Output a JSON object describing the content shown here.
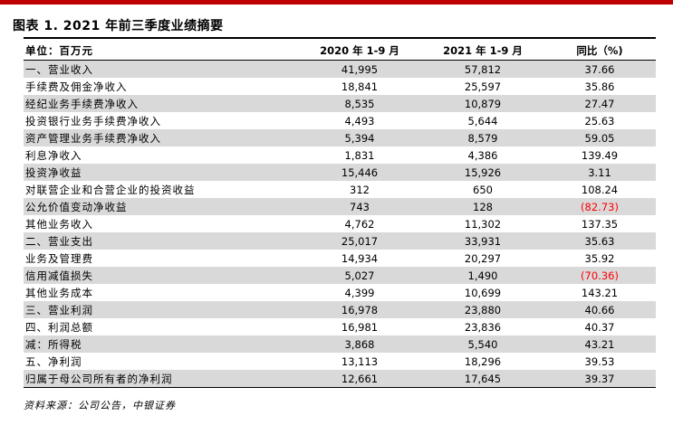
{
  "title": "图表 1. 2021 年前三季度业绩摘要",
  "table": {
    "headers": [
      "单位：百万元",
      "2020 年 1-9 月",
      "2021 年 1-9 月",
      "同比（%)"
    ],
    "rows": [
      [
        "一、营业收入",
        "41,995",
        "57,812",
        "37.66"
      ],
      [
        "手续费及佣金净收入",
        "18,841",
        "25,597",
        "35.86"
      ],
      [
        "经纪业务手续费净收入",
        "8,535",
        "10,879",
        "27.47"
      ],
      [
        "投资银行业务手续费净收入",
        "4,493",
        "5,644",
        "25.63"
      ],
      [
        "资产管理业务手续费净收入",
        "5,394",
        "8,579",
        "59.05"
      ],
      [
        "利息净收入",
        "1,831",
        "4,386",
        "139.49"
      ],
      [
        "投资净收益",
        "15,446",
        "15,926",
        "3.11"
      ],
      [
        "对联营企业和合营企业的投资收益",
        "312",
        "650",
        "108.24"
      ],
      [
        "公允价值变动净收益",
        "743",
        "128",
        "(82.73)"
      ],
      [
        "其他业务收入",
        "4,762",
        "11,302",
        "137.35"
      ],
      [
        "二、营业支出",
        "25,017",
        "33,931",
        "35.63"
      ],
      [
        "业务及管理费",
        "14,934",
        "20,297",
        "35.92"
      ],
      [
        "信用减值损失",
        "5,027",
        "1,490",
        "(70.36)"
      ],
      [
        "其他业务成本",
        "4,399",
        "10,699",
        "143.21"
      ],
      [
        "三、营业利润",
        "16,978",
        "23,880",
        "40.66"
      ],
      [
        "四、利润总额",
        "16,981",
        "23,836",
        "40.37"
      ],
      [
        "减：所得税",
        "3,868",
        "5,540",
        "43.21"
      ],
      [
        "五、净利润",
        "13,113",
        "18,296",
        "39.53"
      ],
      [
        "归属于母公司所有者的净利润",
        "12,661",
        "17,645",
        "39.37"
      ]
    ]
  },
  "negative_color": "#ff0000",
  "source": "资料来源：公司公告，中银证券"
}
